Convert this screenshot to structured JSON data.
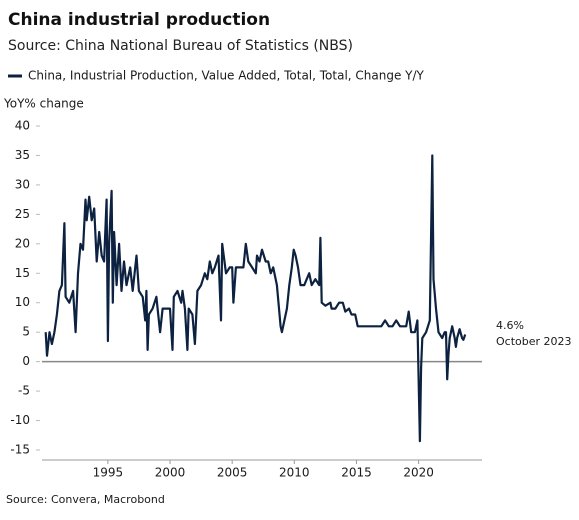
{
  "chart_data": {
    "type": "line",
    "title": "China industrial production",
    "subtitle": "Source: China National Bureau of Statistics (NBS)",
    "y_label": "YoY% change",
    "source": "Source: Convera, Macrobond",
    "annotation": {
      "value_label": "4.6%",
      "date": "October 2023"
    },
    "xlim": [
      1989.7,
      2025.1
    ],
    "xticks": [
      1995,
      2000,
      2005,
      2010,
      2015,
      2020
    ],
    "ylim": [
      -15,
      40
    ],
    "yticks": [
      -15,
      -10,
      -5,
      0,
      5,
      10,
      15,
      20,
      25,
      30,
      35,
      40
    ],
    "zero_line": true,
    "zero_line_color": "#888888",
    "series": [
      {
        "name": "China, Industrial Production, Value Added, Total, Total, Change Y/Y",
        "color": "#0d2240",
        "x": [
          1990.0,
          1990.1,
          1990.3,
          1990.5,
          1990.7,
          1990.9,
          1991.1,
          1991.3,
          1991.5,
          1991.6,
          1991.9,
          1992.2,
          1992.4,
          1992.6,
          1992.8,
          1993.0,
          1993.2,
          1993.3,
          1993.5,
          1993.7,
          1993.9,
          1994.1,
          1994.3,
          1994.5,
          1994.7,
          1994.9,
          1995.0,
          1995.1,
          1995.3,
          1995.4,
          1995.5,
          1995.7,
          1995.9,
          1996.1,
          1996.3,
          1996.5,
          1996.8,
          1997.0,
          1997.3,
          1997.5,
          1997.8,
          1998.0,
          1998.1,
          1998.2,
          1998.3,
          1998.6,
          1998.9,
          1999.0,
          1999.2,
          1999.4,
          1999.7,
          2000.0,
          2000.2,
          2000.3,
          2000.6,
          2000.9,
          2001.0,
          2001.2,
          2001.4,
          2001.5,
          2001.8,
          2002.0,
          2002.2,
          2002.5,
          2002.8,
          2003.0,
          2003.2,
          2003.4,
          2003.6,
          2003.9,
          2004.1,
          2004.2,
          2004.5,
          2004.8,
          2005.0,
          2005.1,
          2005.3,
          2005.6,
          2005.9,
          2006.1,
          2006.3,
          2006.6,
          2006.9,
          2007.0,
          2007.2,
          2007.4,
          2007.7,
          2007.9,
          2008.1,
          2008.3,
          2008.6,
          2008.9,
          2009.0,
          2009.2,
          2009.4,
          2009.6,
          2009.8,
          2009.95,
          2010.1,
          2010.3,
          2010.5,
          2010.8,
          2011.0,
          2011.2,
          2011.4,
          2011.7,
          2012.0,
          2012.1,
          2012.2,
          2012.5,
          2012.9,
          2013.0,
          2013.3,
          2013.6,
          2013.9,
          2014.1,
          2014.4,
          2014.6,
          2014.9,
          2015.1,
          2015.4,
          2015.7,
          2015.9,
          2016.2,
          2016.5,
          2016.8,
          2017.0,
          2017.3,
          2017.6,
          2017.9,
          2018.2,
          2018.5,
          2018.8,
          2019.0,
          2019.2,
          2019.4,
          2019.7,
          2019.9,
          2020.1,
          2020.2,
          2020.3,
          2020.6,
          2020.9,
          2021.1,
          2021.2,
          2021.4,
          2021.6,
          2021.9,
          2022.1,
          2022.2,
          2022.3,
          2022.4,
          2022.5,
          2022.7,
          2022.9,
          2023.0,
          2023.1,
          2023.3,
          2023.5,
          2023.6,
          2023.75
        ],
        "values": [
          5,
          1,
          5,
          3,
          5,
          8,
          12,
          13,
          23.5,
          11,
          10,
          12,
          5,
          15,
          20,
          19,
          27.5,
          24,
          28,
          24,
          26,
          17,
          22,
          18,
          17,
          27.5,
          3.5,
          20,
          29,
          10,
          22,
          13,
          20,
          12,
          17,
          13,
          16,
          12,
          18,
          12,
          11,
          7,
          12,
          2,
          8,
          9,
          11,
          9,
          5,
          9,
          9,
          9,
          2,
          11,
          12,
          10,
          12,
          9,
          2,
          9,
          8,
          3,
          12,
          13,
          15,
          14,
          17,
          15,
          16,
          18,
          7,
          20,
          15,
          16,
          16,
          10,
          16,
          16,
          16,
          20,
          17,
          16,
          15,
          18,
          17,
          19,
          17,
          17,
          15,
          16,
          13,
          6,
          5,
          7,
          9,
          13,
          16,
          19,
          18,
          16,
          13,
          13,
          14,
          15,
          13,
          14,
          13,
          21,
          10,
          9.5,
          10,
          9,
          9,
          10,
          10,
          8.5,
          9,
          8,
          8,
          6,
          6,
          6,
          6,
          6,
          6,
          6,
          6,
          7,
          6,
          6,
          7,
          6,
          6,
          6,
          8.5,
          5,
          5,
          7,
          -13.5,
          -1,
          4,
          5,
          7,
          35,
          14,
          9,
          5,
          4,
          5,
          5,
          -3,
          1,
          4,
          6,
          4,
          2.5,
          4,
          5.5,
          4,
          3.7,
          4.6
        ]
      }
    ]
  }
}
